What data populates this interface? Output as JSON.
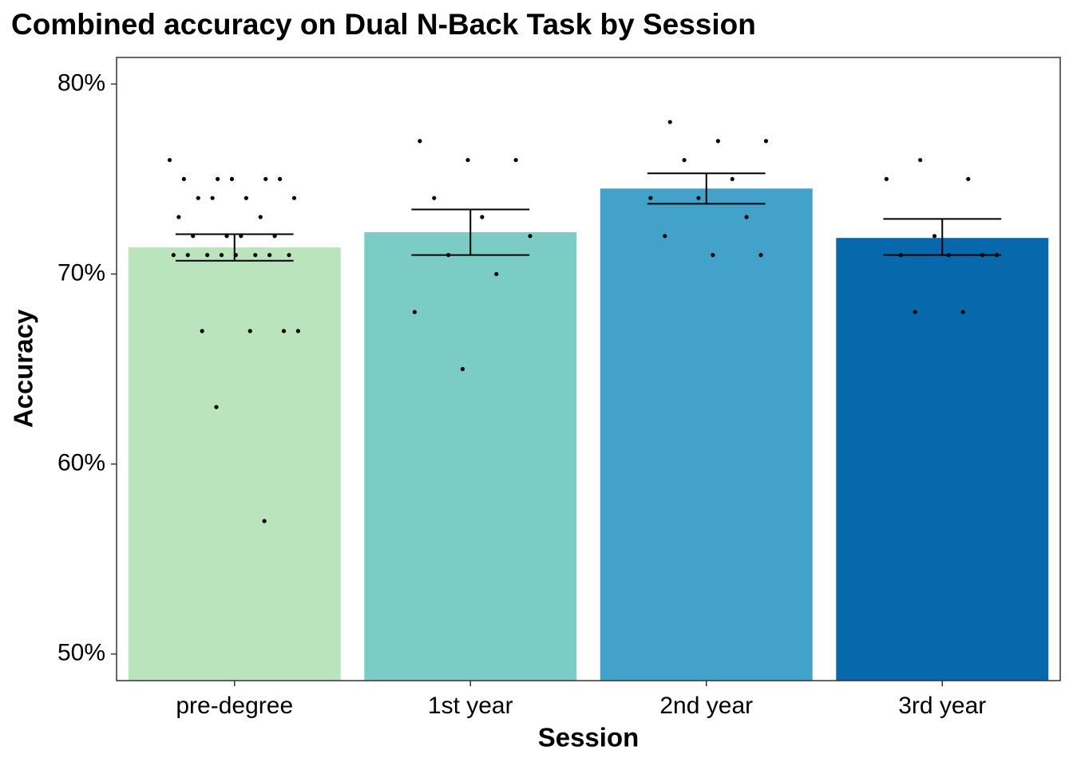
{
  "chart_data": {
    "type": "bar",
    "title": "Combined accuracy on Dual N-Back Task by Session",
    "x_label": "Session",
    "y_label": "Accuracy",
    "categories": [
      "pre-degree",
      "1st year",
      "2nd year",
      "3rd year"
    ],
    "values": [
      71.4,
      72.2,
      74.5,
      71.9
    ],
    "colors": [
      "#bae4bc",
      "#7bccc4",
      "#43a2ca",
      "#0868ac"
    ],
    "error_low": [
      70.7,
      71.0,
      73.7,
      71.0
    ],
    "error_high": [
      72.1,
      73.4,
      75.3,
      72.9
    ],
    "points": [
      [
        76,
        75,
        75,
        75,
        75,
        75,
        74,
        74,
        74,
        74,
        73,
        73,
        72,
        72,
        72,
        72,
        71,
        71,
        71,
        71,
        71,
        71,
        71,
        71,
        67,
        67,
        67,
        67,
        63,
        57
      ],
      [
        77,
        76,
        76,
        74,
        73,
        72,
        71,
        70,
        68,
        65
      ],
      [
        78,
        77,
        77,
        76,
        75,
        74,
        74,
        73,
        72,
        71,
        71
      ],
      [
        76,
        75,
        75,
        72,
        71,
        71,
        71,
        71,
        68,
        68
      ]
    ],
    "ylim": [
      48.6,
      81.4
    ],
    "yticks": [
      {
        "value": 50,
        "label": "50%"
      },
      {
        "value": 60,
        "label": "60%"
      },
      {
        "value": 70,
        "label": "70%"
      },
      {
        "value": 80,
        "label": "80%"
      }
    ]
  }
}
